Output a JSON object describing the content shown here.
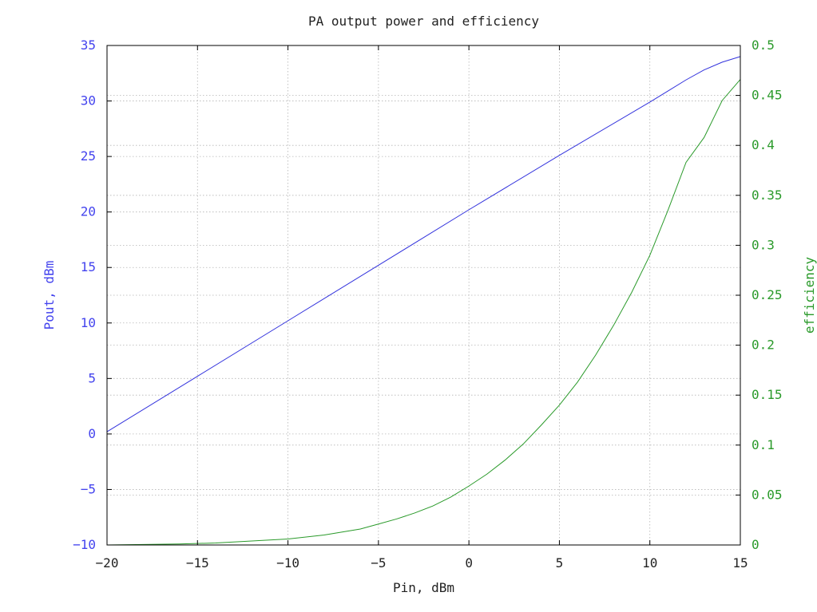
{
  "chart_data": {
    "type": "line",
    "title": "PA output power and efficiency",
    "xlabel": "Pin, dBm",
    "ylabel_left": "Pout, dBm",
    "ylabel_right": "efficiency",
    "xlim": [
      -20,
      15
    ],
    "ylim_left": [
      -10,
      35
    ],
    "ylim_right": [
      0,
      0.5
    ],
    "x_ticks": [
      "−20",
      "−15",
      "−10",
      "−5",
      "0",
      "5",
      "10",
      "15"
    ],
    "y_left_ticks": [
      "35",
      "30",
      "25",
      "20",
      "15",
      "10",
      "5",
      "0",
      "−5",
      "−10"
    ],
    "y_right_ticks": [
      "0.5",
      "0.45",
      "0.4",
      "0.35",
      "0.3",
      "0.25",
      "0.2",
      "0.15",
      "0.1",
      "0.05",
      "0"
    ],
    "grid": true,
    "series": [
      {
        "axis": "left",
        "color": "#3333dd",
        "x": [
          -20,
          -15,
          -10,
          -5,
          0,
          5,
          10,
          11,
          12,
          13,
          14,
          15
        ],
        "y": [
          0.2,
          5.2,
          10.2,
          15.2,
          20.2,
          25.1,
          29.9,
          30.9,
          31.9,
          32.8,
          33.5,
          34.0
        ]
      },
      {
        "axis": "right",
        "color": "#2a9a2a",
        "x": [
          -20,
          -18,
          -16,
          -14,
          -12,
          -10,
          -8,
          -6,
          -5,
          -4,
          -3,
          -2,
          -1,
          0,
          1,
          2,
          3,
          4,
          5,
          6,
          7,
          8,
          9,
          10,
          11,
          12,
          13,
          14,
          15
        ],
        "y": [
          0.0,
          0.0005,
          0.001,
          0.002,
          0.004,
          0.006,
          0.01,
          0.016,
          0.021,
          0.026,
          0.032,
          0.039,
          0.048,
          0.059,
          0.071,
          0.085,
          0.101,
          0.12,
          0.14,
          0.163,
          0.19,
          0.22,
          0.253,
          0.29,
          0.335,
          0.383,
          0.408,
          0.445,
          0.466
        ]
      }
    ]
  }
}
